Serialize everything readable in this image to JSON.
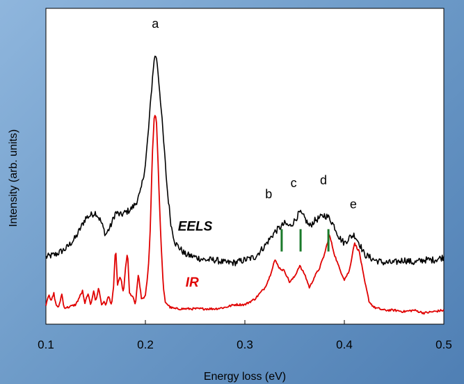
{
  "chart_data": {
    "type": "line",
    "title": "",
    "xlabel": "Energy loss (eV)",
    "ylabel": "Intensity (arb. units)",
    "xlim": [
      0.1,
      0.5
    ],
    "ylim": [
      0,
      1
    ],
    "x_ticks": [
      0.1,
      0.2,
      0.3,
      0.4,
      0.5
    ],
    "x_tick_labels": [
      "0.1",
      "0.2",
      "0.3",
      "0.4",
      "0.5"
    ],
    "y_ticks_shown": false,
    "grid": false,
    "legend": "none",
    "series": [
      {
        "name": "EELS",
        "color": "#000000",
        "x": [
          0.1,
          0.11,
          0.12,
          0.13,
          0.14,
          0.15,
          0.155,
          0.16,
          0.165,
          0.17,
          0.175,
          0.18,
          0.185,
          0.19,
          0.195,
          0.2,
          0.203,
          0.206,
          0.208,
          0.21,
          0.212,
          0.215,
          0.218,
          0.222,
          0.226,
          0.23,
          0.24,
          0.25,
          0.26,
          0.27,
          0.28,
          0.29,
          0.3,
          0.31,
          0.32,
          0.33,
          0.34,
          0.345,
          0.35,
          0.355,
          0.36,
          0.365,
          0.37,
          0.375,
          0.38,
          0.385,
          0.39,
          0.395,
          0.4,
          0.405,
          0.41,
          0.415,
          0.42,
          0.43,
          0.44,
          0.45,
          0.46,
          0.47,
          0.48,
          0.49,
          0.5
        ],
        "y": [
          0.19,
          0.2,
          0.22,
          0.26,
          0.33,
          0.35,
          0.32,
          0.27,
          0.3,
          0.35,
          0.34,
          0.35,
          0.36,
          0.38,
          0.42,
          0.52,
          0.64,
          0.78,
          0.87,
          0.92,
          0.88,
          0.76,
          0.62,
          0.43,
          0.3,
          0.24,
          0.2,
          0.19,
          0.18,
          0.18,
          0.17,
          0.17,
          0.18,
          0.19,
          0.23,
          0.28,
          0.31,
          0.3,
          0.32,
          0.35,
          0.33,
          0.3,
          0.32,
          0.33,
          0.34,
          0.33,
          0.3,
          0.26,
          0.24,
          0.26,
          0.27,
          0.24,
          0.2,
          0.18,
          0.17,
          0.17,
          0.18,
          0.17,
          0.18,
          0.18,
          0.19
        ]
      },
      {
        "name": "IR",
        "color": "#e00000",
        "x": [
          0.1,
          0.103,
          0.105,
          0.108,
          0.11,
          0.113,
          0.116,
          0.118,
          0.122,
          0.13,
          0.137,
          0.139,
          0.142,
          0.145,
          0.148,
          0.15,
          0.153,
          0.156,
          0.158,
          0.16,
          0.163,
          0.166,
          0.168,
          0.17,
          0.172,
          0.175,
          0.178,
          0.18,
          0.182,
          0.184,
          0.187,
          0.19,
          0.193,
          0.196,
          0.2,
          0.203,
          0.205,
          0.207,
          0.209,
          0.211,
          0.213,
          0.215,
          0.218,
          0.22,
          0.225,
          0.23,
          0.24,
          0.25,
          0.26,
          0.27,
          0.28,
          0.29,
          0.3,
          0.31,
          0.32,
          0.325,
          0.33,
          0.335,
          0.34,
          0.345,
          0.35,
          0.355,
          0.358,
          0.36,
          0.365,
          0.37,
          0.375,
          0.38,
          0.385,
          0.39,
          0.395,
          0.4,
          0.405,
          0.41,
          0.415,
          0.42,
          0.425,
          0.43,
          0.44,
          0.45,
          0.46,
          0.47,
          0.48,
          0.49,
          0.5
        ],
        "y": [
          0.02,
          0.06,
          0.03,
          0.06,
          0.02,
          0.01,
          0.06,
          0.01,
          0.01,
          0.02,
          0.07,
          0.02,
          0.06,
          0.02,
          0.07,
          0.03,
          0.08,
          0.02,
          0.03,
          0.02,
          0.05,
          0.02,
          0.08,
          0.23,
          0.09,
          0.12,
          0.06,
          0.15,
          0.21,
          0.06,
          0.05,
          0.02,
          0.13,
          0.04,
          0.05,
          0.15,
          0.3,
          0.56,
          0.7,
          0.69,
          0.5,
          0.3,
          0.08,
          0.03,
          0.01,
          0.005,
          0.005,
          0.005,
          0.005,
          0.005,
          0.01,
          0.02,
          0.02,
          0.04,
          0.08,
          0.12,
          0.18,
          0.15,
          0.14,
          0.1,
          0.12,
          0.16,
          0.14,
          0.13,
          0.08,
          0.12,
          0.15,
          0.2,
          0.27,
          0.2,
          0.15,
          0.11,
          0.14,
          0.24,
          0.21,
          0.11,
          0.03,
          0.01,
          0.0,
          0.0,
          -0.005,
          0.0,
          -0.01,
          -0.005,
          0.0
        ]
      }
    ],
    "peak_labels": [
      {
        "text": "a",
        "x": 0.21,
        "y": 1.01
      },
      {
        "text": "b",
        "x": 0.324,
        "y": 0.4
      },
      {
        "text": "c",
        "x": 0.349,
        "y": 0.44
      },
      {
        "text": "d",
        "x": 0.379,
        "y": 0.45
      },
      {
        "text": "e",
        "x": 0.409,
        "y": 0.365
      }
    ],
    "series_labels": [
      {
        "text": "EELS",
        "x": 0.25,
        "y": 0.285,
        "color": "#000000"
      },
      {
        "text": "IR",
        "x": 0.247,
        "y": 0.085,
        "color": "#e00000"
      }
    ],
    "markers": {
      "color": "#1a7a2a",
      "x": [
        0.337,
        0.356,
        0.384
      ],
      "y_top": 0.29,
      "y_bottom": 0.21
    }
  }
}
